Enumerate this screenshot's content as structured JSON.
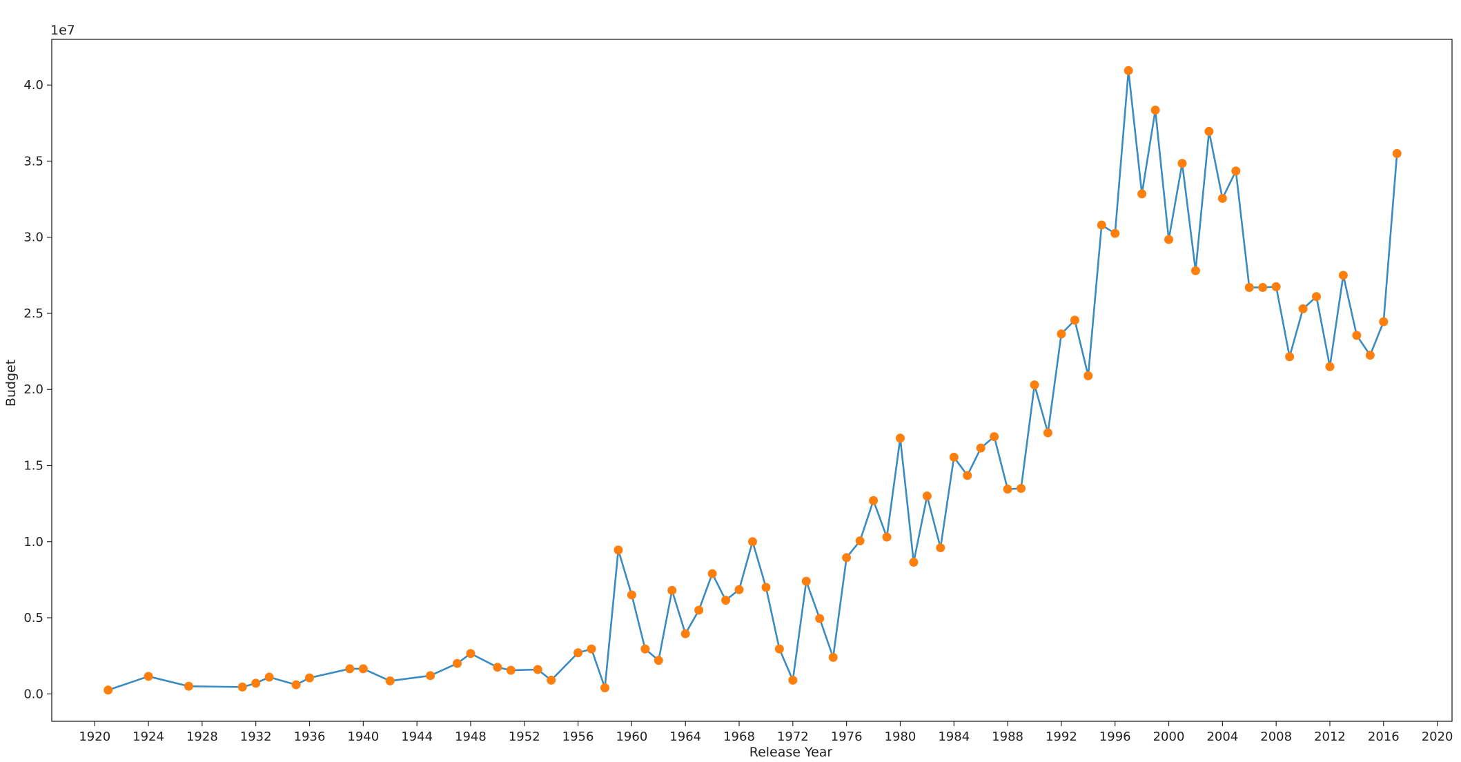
{
  "chart_data": {
    "type": "line",
    "title": "",
    "xlabel": "Release Year",
    "ylabel": "Budget",
    "y_multiplier_label": "1e7",
    "xlim": [
      1916.8,
      2021.1
    ],
    "ylim": [
      -0.18,
      4.3
    ],
    "x_ticks": [
      "1920",
      "1924",
      "1928",
      "1932",
      "1936",
      "1940",
      "1944",
      "1948",
      "1952",
      "1956",
      "1960",
      "1964",
      "1968",
      "1972",
      "1976",
      "1980",
      "1984",
      "1988",
      "1992",
      "1996",
      "2000",
      "2004",
      "2008",
      "2012",
      "2016",
      "2020"
    ],
    "y_ticks": [
      "0.0",
      "0.5",
      "1.0",
      "1.5",
      "2.0",
      "2.5",
      "3.0",
      "3.5",
      "4.0"
    ],
    "grid": false,
    "series": [
      {
        "line_color": "#3a8bbf",
        "marker_color": "#ff7f0e",
        "x": [
          1921,
          1924,
          1927,
          1931,
          1932,
          1933,
          1935,
          1936,
          1939,
          1940,
          1942,
          1945,
          1947,
          1948,
          1950,
          1951,
          1953,
          1954,
          1956,
          1957,
          1958,
          1959,
          1960,
          1961,
          1962,
          1963,
          1964,
          1965,
          1966,
          1967,
          1968,
          1969,
          1970,
          1971,
          1972,
          1973,
          1974,
          1975,
          1976,
          1977,
          1978,
          1979,
          1980,
          1981,
          1982,
          1983,
          1984,
          1985,
          1986,
          1987,
          1988,
          1989,
          1990,
          1991,
          1992,
          1993,
          1994,
          1995,
          1996,
          1997,
          1998,
          1999,
          2000,
          2001,
          2002,
          2003,
          2004,
          2005,
          2006,
          2007,
          2008,
          2009,
          2010,
          2011,
          2012,
          2013,
          2014,
          2015,
          2016,
          2017
        ],
        "values": [
          0.025,
          0.115,
          0.05,
          0.045,
          0.07,
          0.11,
          0.06,
          0.105,
          0.165,
          0.165,
          0.085,
          0.12,
          0.2,
          0.265,
          0.175,
          0.155,
          0.16,
          0.09,
          0.27,
          0.295,
          0.04,
          0.945,
          0.65,
          0.295,
          0.22,
          0.68,
          0.395,
          0.55,
          0.79,
          0.615,
          0.685,
          1.0,
          0.7,
          0.295,
          0.09,
          0.74,
          0.495,
          0.24,
          0.895,
          1.005,
          1.27,
          1.03,
          1.68,
          0.865,
          1.3,
          0.96,
          1.555,
          1.435,
          1.615,
          1.69,
          1.345,
          1.35,
          2.03,
          1.715,
          2.365,
          2.455,
          2.09,
          3.08,
          3.025,
          4.095,
          3.285,
          3.835,
          2.985,
          3.485,
          2.78,
          3.695,
          3.255,
          3.435,
          2.67,
          2.67,
          2.675,
          2.215,
          2.53,
          2.61,
          2.15,
          2.75,
          2.355,
          2.225,
          2.445,
          3.55
        ]
      }
    ]
  }
}
